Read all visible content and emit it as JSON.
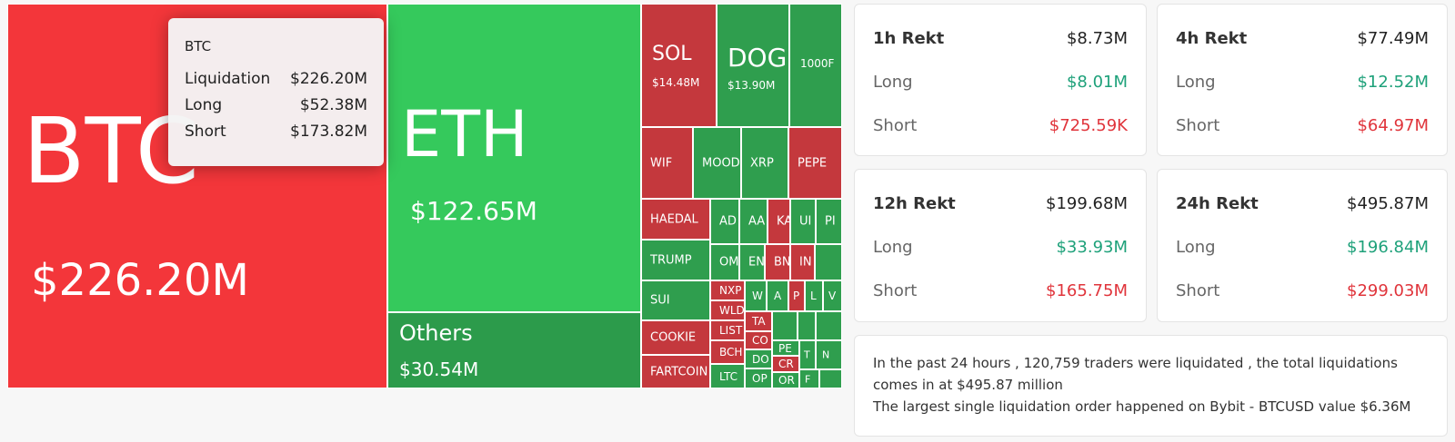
{
  "treemap": {
    "btc": {
      "symbol": "BTC",
      "value": "$226.20M"
    },
    "eth": {
      "symbol": "ETH",
      "value": "$122.65M"
    },
    "others": {
      "symbol": "Others",
      "value": "$30.54M"
    },
    "sol": {
      "symbol": "SOL",
      "value": "$14.48M"
    },
    "doge": {
      "symbol": "DOGI",
      "value": "$13.90M"
    },
    "t1000": {
      "symbol": "1000F"
    },
    "wif": "WIF",
    "mood": "MOOD",
    "xrp": "XRP",
    "pepe": "PEPE",
    "haedal": "HAEDAL",
    "trump": "TRUMP",
    "sui": "SUI",
    "cookie": "COOKIE",
    "fartcoin": "FARTCOIN",
    "small": [
      "AD",
      "AA",
      "KA",
      "UI",
      "PI",
      "OM",
      "EN",
      "BN",
      "IN",
      "NXP",
      "WLD",
      "LIST",
      "BCH",
      "LTC",
      "W",
      "A",
      "P",
      "L",
      "V",
      "TA",
      "CO",
      "DO",
      "OP",
      "PE",
      "CR",
      "OR",
      "T",
      "N",
      "F"
    ]
  },
  "tooltip": {
    "title": "BTC",
    "rows": [
      {
        "label": "Liquidation",
        "value": "$226.20M"
      },
      {
        "label": "Long",
        "value": "$52.38M"
      },
      {
        "label": "Short",
        "value": "$173.82M"
      }
    ]
  },
  "cards": [
    {
      "title": "1h Rekt",
      "total": "$8.73M",
      "long_label": "Long",
      "long": "$8.01M",
      "short_label": "Short",
      "short": "$725.59K"
    },
    {
      "title": "4h Rekt",
      "total": "$77.49M",
      "long_label": "Long",
      "long": "$12.52M",
      "short_label": "Short",
      "short": "$64.97M"
    },
    {
      "title": "12h Rekt",
      "total": "$199.68M",
      "long_label": "Long",
      "long": "$33.93M",
      "short_label": "Short",
      "short": "$165.75M"
    },
    {
      "title": "24h Rekt",
      "total": "$495.87M",
      "long_label": "Long",
      "long": "$196.84M",
      "short_label": "Short",
      "short": "$299.03M"
    }
  ],
  "summary": {
    "line1": "In the past 24 hours , 120,759 traders were liquidated , the total liquidations comes in at $495.87 million",
    "line2": "The largest single liquidation order happened on Bybit - BTCUSD value $6.36M"
  },
  "colors": {
    "long": "#1ea17a",
    "short": "#e0343b",
    "tile_red": "#f3363a",
    "tile_green": "#35c95c"
  }
}
